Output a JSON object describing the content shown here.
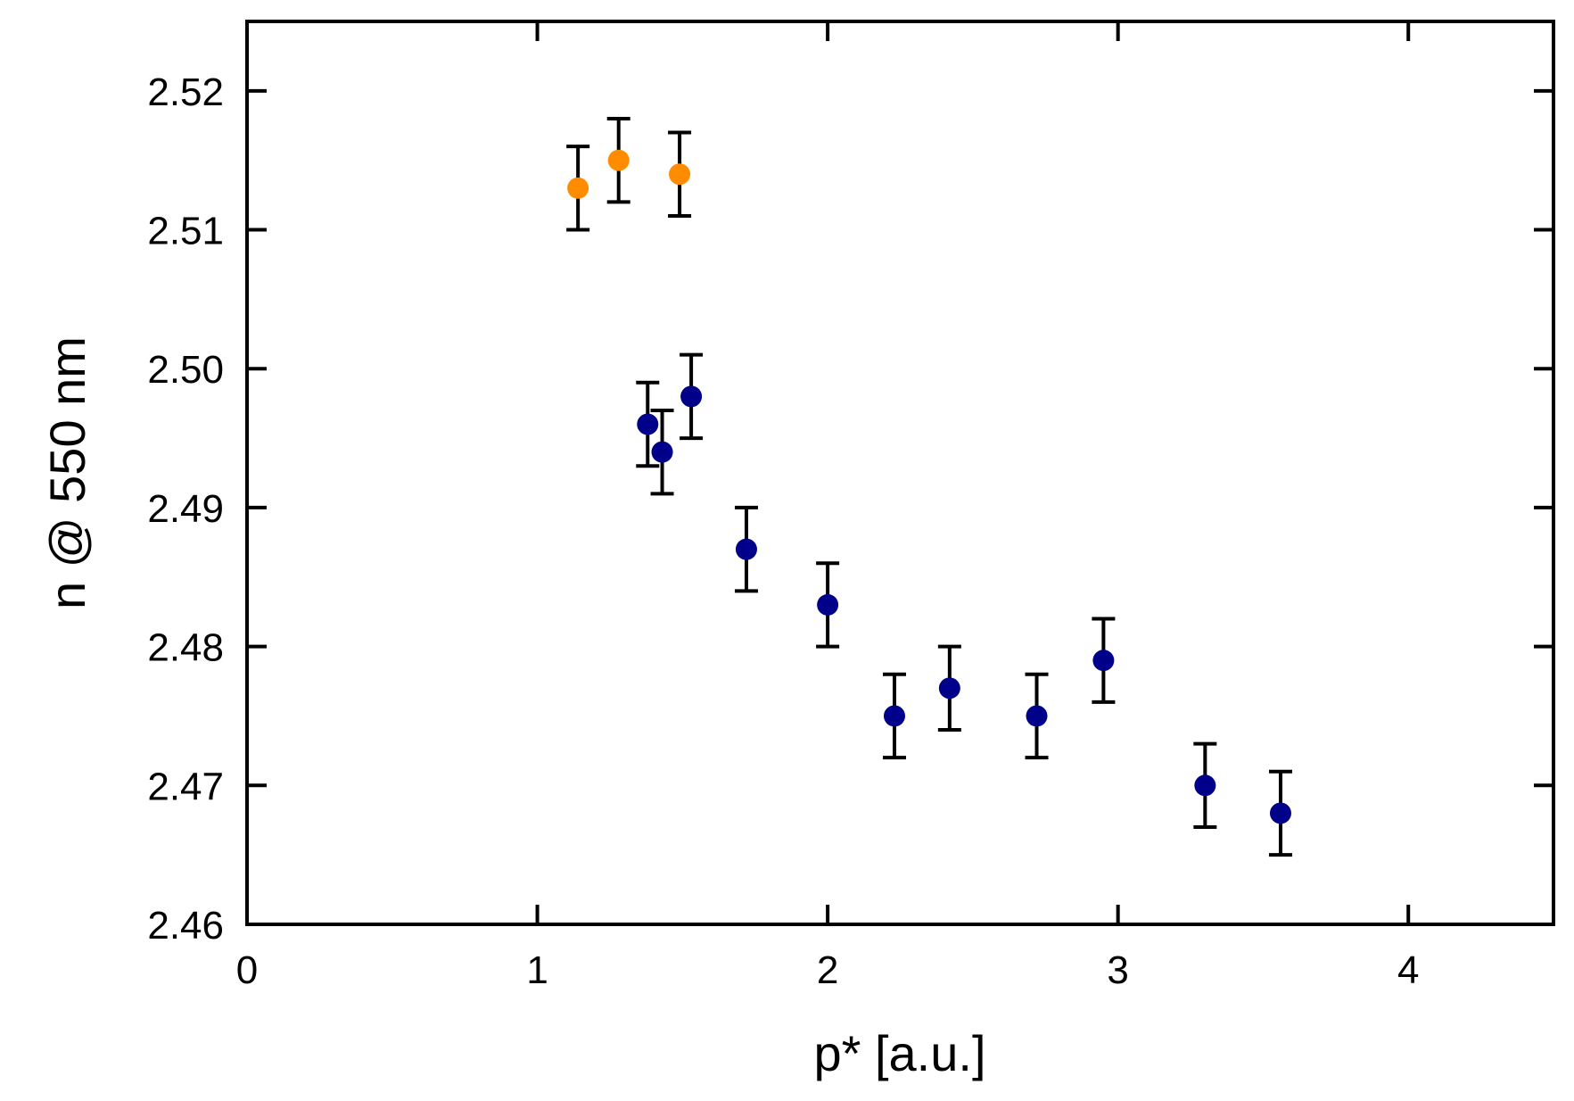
{
  "chart_data": {
    "type": "scatter",
    "xlabel": "p* [a.u.]",
    "ylabel": "n @ 550 nm",
    "xlim": [
      0,
      4.5
    ],
    "ylim": [
      2.46,
      2.525
    ],
    "x_ticks": [
      "0",
      "1",
      "2",
      "3",
      "4"
    ],
    "y_ticks": [
      "2.46",
      "2.47",
      "2.48",
      "2.49",
      "2.50",
      "2.51",
      "2.52"
    ],
    "grid": false,
    "series": [
      {
        "color": "#ff8c00",
        "points": [
          {
            "x": 1.14,
            "y": 2.513,
            "err": 0.003
          },
          {
            "x": 1.28,
            "y": 2.515,
            "err": 0.003
          },
          {
            "x": 1.49,
            "y": 2.514,
            "err": 0.003
          }
        ]
      },
      {
        "color": "#00008b",
        "points": [
          {
            "x": 1.38,
            "y": 2.496,
            "err": 0.003
          },
          {
            "x": 1.43,
            "y": 2.494,
            "err": 0.003
          },
          {
            "x": 1.53,
            "y": 2.498,
            "err": 0.003
          },
          {
            "x": 1.72,
            "y": 2.487,
            "err": 0.003
          },
          {
            "x": 2.0,
            "y": 2.483,
            "err": 0.003
          },
          {
            "x": 2.23,
            "y": 2.475,
            "err": 0.003
          },
          {
            "x": 2.42,
            "y": 2.477,
            "err": 0.003
          },
          {
            "x": 2.72,
            "y": 2.475,
            "err": 0.003
          },
          {
            "x": 2.95,
            "y": 2.479,
            "err": 0.003
          },
          {
            "x": 3.3,
            "y": 2.47,
            "err": 0.003
          },
          {
            "x": 3.56,
            "y": 2.468,
            "err": 0.003
          }
        ]
      }
    ]
  }
}
